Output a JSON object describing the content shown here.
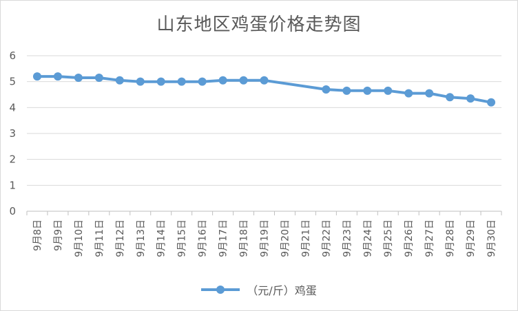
{
  "chart_data": {
    "type": "line",
    "title": "山东地区鸡蛋价格走势图",
    "categories": [
      "9月8日",
      "9月9日",
      "9月10日",
      "9月11日",
      "9月12日",
      "9月13日",
      "9月14日",
      "9月15日",
      "9月16日",
      "9月17日",
      "9月18日",
      "9月19日",
      "9月20日",
      "9月21日",
      "9月22日",
      "9月23日",
      "9月24日",
      "9月25日",
      "9月26日",
      "9月27日",
      "9月28日",
      "9月29日",
      "9月30日"
    ],
    "series": [
      {
        "name": "（元/斤）鸡蛋",
        "color": "#5b9bd5",
        "values": [
          5.2,
          5.2,
          5.15,
          5.15,
          5.05,
          5.0,
          5.0,
          5.0,
          5.0,
          5.05,
          5.05,
          5.05,
          null,
          null,
          4.7,
          4.65,
          4.65,
          4.65,
          4.55,
          4.55,
          4.4,
          4.35,
          4.2
        ]
      }
    ],
    "yticks": [
      "0",
      "1",
      "2",
      "3",
      "4",
      "5",
      "6"
    ],
    "ylim": [
      0,
      6
    ],
    "grid": true,
    "legend_position": "bottom",
    "gaps": "connect"
  }
}
